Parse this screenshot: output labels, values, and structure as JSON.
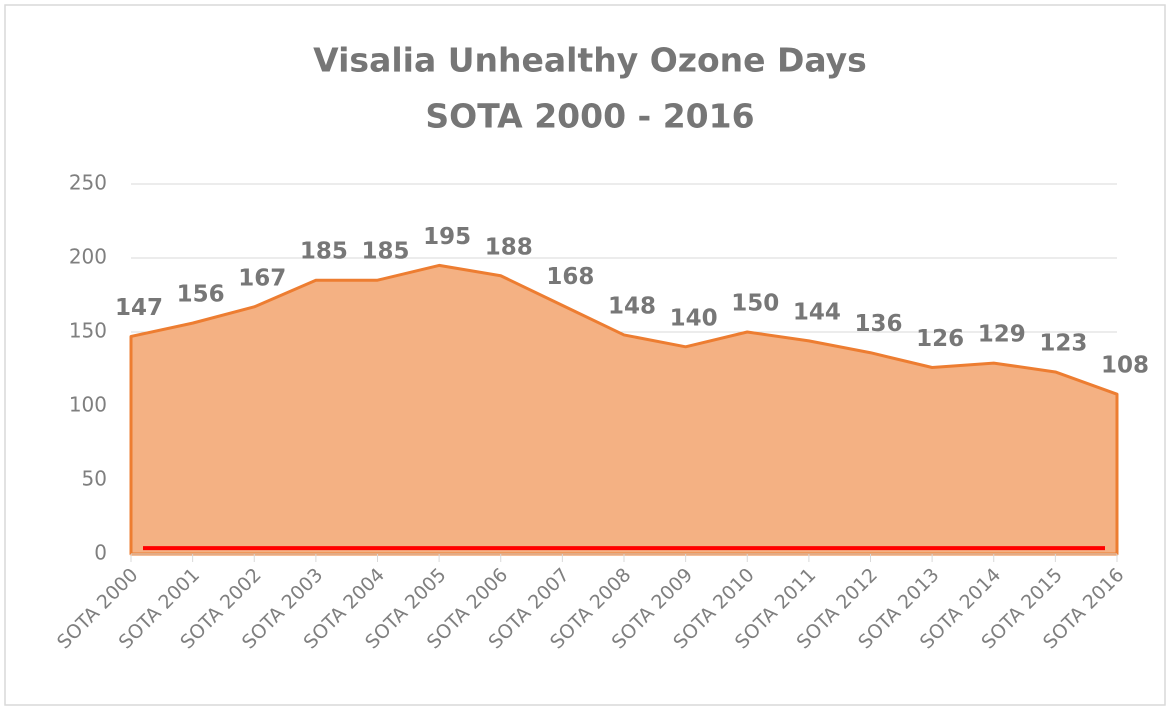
{
  "chart_data": {
    "type": "area",
    "title": "Visalia  Unhealthy  Ozone Days",
    "subtitle": "SOTA 2000 - 2016",
    "categories": [
      "SOTA 2000",
      "SOTA 2001",
      "SOTA 2002",
      "SOTA 2003",
      "SOTA 2004",
      "SOTA 2005",
      "SOTA 2006",
      "SOTA 2007",
      "SOTA 2008",
      "SOTA 2009",
      "SOTA 2010",
      "SOTA 2011",
      "SOTA 2012",
      "SOTA 2013",
      "SOTA 2014",
      "SOTA 2015",
      "SOTA 2016"
    ],
    "series": [
      {
        "color": "#f4b183",
        "line_color": "#ed7d31",
        "values": [
          147,
          156,
          167,
          185,
          185,
          195,
          188,
          168,
          148,
          140,
          150,
          144,
          136,
          126,
          129,
          123,
          108
        ]
      },
      {
        "color": "#ff0000",
        "type": "line",
        "values": [
          4,
          4,
          4,
          4,
          4,
          4,
          4,
          4,
          4,
          4,
          4,
          4,
          4,
          4,
          4,
          4,
          4
        ]
      }
    ],
    "ylim": [
      0,
      250
    ],
    "yticks": [
      0,
      50,
      100,
      150,
      200,
      250
    ],
    "grid": true
  }
}
